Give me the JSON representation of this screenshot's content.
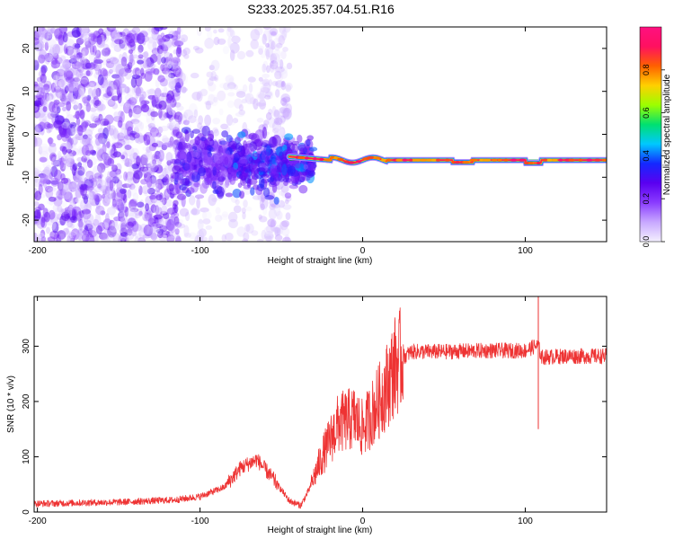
{
  "figure": {
    "title": "S233.2025.357.04.51.R16"
  },
  "chart_data": [
    {
      "type": "heatmap",
      "name": "spectrogram",
      "title": "S233.2025.357.04.51.R16",
      "xlabel": "Height of straight line (km)",
      "ylabel": "Frequency (Hz)",
      "xlim": [
        -202,
        150
      ],
      "ylim": [
        -25,
        25
      ],
      "x_ticks": [
        -200,
        -100,
        0,
        100
      ],
      "x_tick_labels": [
        "-200",
        "-100",
        "0",
        "100"
      ],
      "y_ticks": [
        -20,
        -10,
        0,
        10,
        20
      ],
      "y_tick_labels": [
        "-20",
        "-10",
        "0",
        "10",
        "20"
      ],
      "colorbar": {
        "label": "Normalized spectral amplitude",
        "range": [
          0,
          1
        ],
        "ticks": [
          0.0,
          0.2,
          0.4,
          0.6,
          0.8
        ],
        "tick_labels": [
          "0.0",
          "0.2",
          "0.4",
          "0.6",
          "0.8"
        ],
        "colormap": [
          "#f4f0ff",
          "#c8a8ff",
          "#8a3cff",
          "#5a00f0",
          "#1428ff",
          "#00c8ff",
          "#00e070",
          "#9cff00",
          "#ffd000",
          "#ff6000",
          "#ff1060",
          "#ff1080"
        ]
      },
      "carrier_line": {
        "frequency_hz": -6,
        "x_start_km": -45,
        "x_end_km": 150
      },
      "grid": false
    },
    {
      "type": "line",
      "name": "snr",
      "xlabel": "Height of straight line (km)",
      "ylabel": "SNR (10 * v/v)",
      "xlim": [
        -202,
        150
      ],
      "ylim": [
        0,
        390
      ],
      "x_ticks": [
        -200,
        -100,
        0,
        100
      ],
      "x_tick_labels": [
        "-200",
        "-100",
        "0",
        "100"
      ],
      "y_ticks": [
        0,
        100,
        200,
        300
      ],
      "y_tick_labels": [
        "0",
        "100",
        "200",
        "300"
      ],
      "color": "#ee3333",
      "envelope": {
        "x": [
          -202,
          -150,
          -115,
          -100,
          -85,
          -75,
          -65,
          -55,
          -45,
          -38,
          -33,
          -25,
          -15,
          -5,
          0,
          10,
          15,
          20,
          25,
          30,
          35,
          50,
          75,
          100,
          106,
          108,
          110,
          125,
          150
        ],
        "y": [
          15,
          18,
          22,
          28,
          45,
          80,
          95,
          60,
          20,
          12,
          40,
          100,
          160,
          170,
          150,
          200,
          230,
          265,
          280,
          290,
          290,
          290,
          292,
          292,
          300,
          300,
          280,
          282,
          282
        ]
      },
      "spikes": [
        {
          "x": 108,
          "y": 390
        },
        {
          "x": 108,
          "y": 150
        }
      ],
      "grid": false
    }
  ]
}
